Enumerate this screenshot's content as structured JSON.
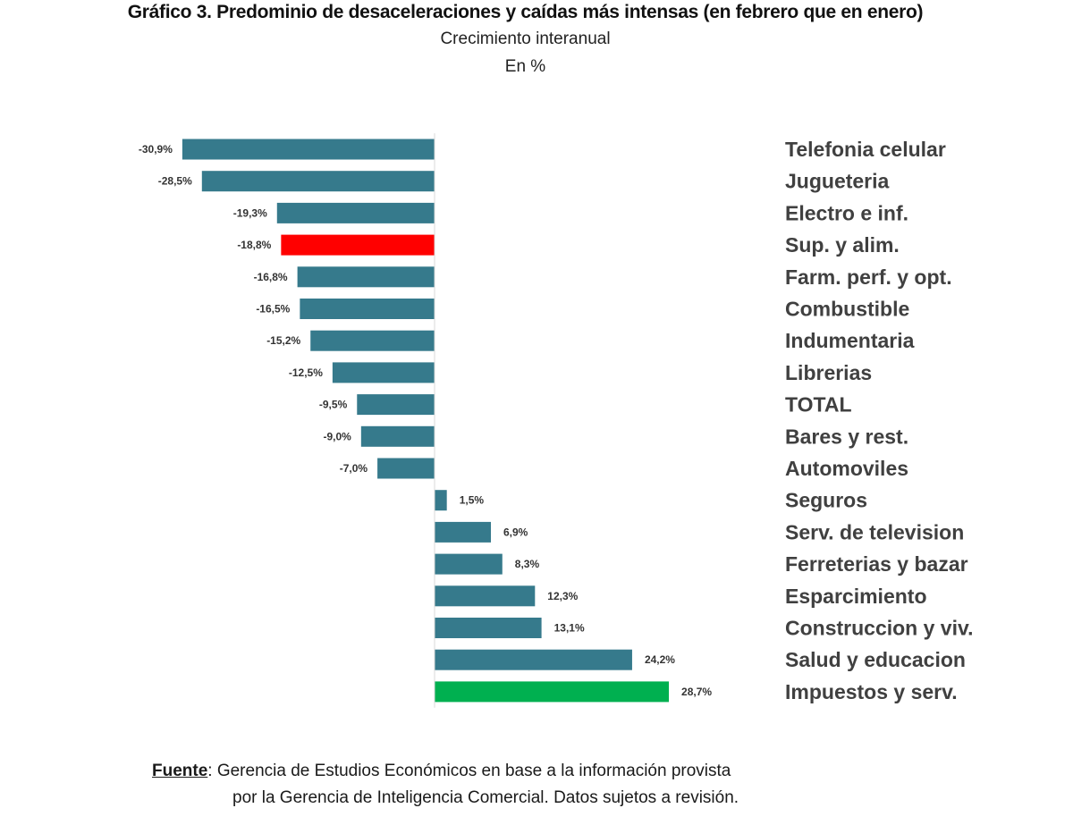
{
  "chart_data": {
    "type": "bar",
    "orientation": "horizontal",
    "title": "Gráfico 3. Predominio de desaceleraciones y caídas más intensas (en febrero que en enero)",
    "subtitle": "Crecimiento interanual",
    "unit_label": "En %",
    "xlabel": "",
    "ylabel": "",
    "xlim": [
      -30.9,
      28.7
    ],
    "grid": false,
    "legend": "none",
    "categories": [
      "Telefonia celular",
      "Jugueteria",
      "Electro e inf.",
      "Sup. y alim.",
      "Farm. perf. y opt.",
      "Combustible",
      "Indumentaria",
      "Librerias",
      "TOTAL",
      "Bares y rest.",
      "Automoviles",
      "Seguros",
      "Serv. de television",
      "Ferreterias y bazar",
      "Esparcimiento",
      "Construccion y viv.",
      "Salud y educacion",
      "Impuestos y serv."
    ],
    "values": [
      -30.9,
      -28.5,
      -19.3,
      -18.8,
      -16.8,
      -16.5,
      -15.2,
      -12.5,
      -9.5,
      -9.0,
      -7.0,
      1.5,
      6.9,
      8.3,
      12.3,
      13.1,
      24.2,
      28.7
    ],
    "data_labels": [
      "-30,9%",
      "-28,5%",
      "-19,3%",
      "-18,8%",
      "-16,8%",
      "-16,5%",
      "-15,2%",
      "-12,5%",
      "-9,5%",
      "-9,0%",
      "-7,0%",
      "1,5%",
      "6,9%",
      "8,3%",
      "12,3%",
      "13,1%",
      "24,2%",
      "28,7%"
    ],
    "colors": {
      "default": "#367A8C",
      "highlight_negative": "#FF0000",
      "highlight_positive": "#00B050"
    },
    "highlights": {
      "Sup. y alim.": "highlight_negative",
      "Impuestos y serv.": "highlight_positive"
    }
  },
  "source": {
    "label": "Fuente",
    "line1": ": Gerencia de Estudios Económicos en base a la información provista",
    "line2": "por la Gerencia de Inteligencia Comercial. Datos sujetos a revisión."
  }
}
